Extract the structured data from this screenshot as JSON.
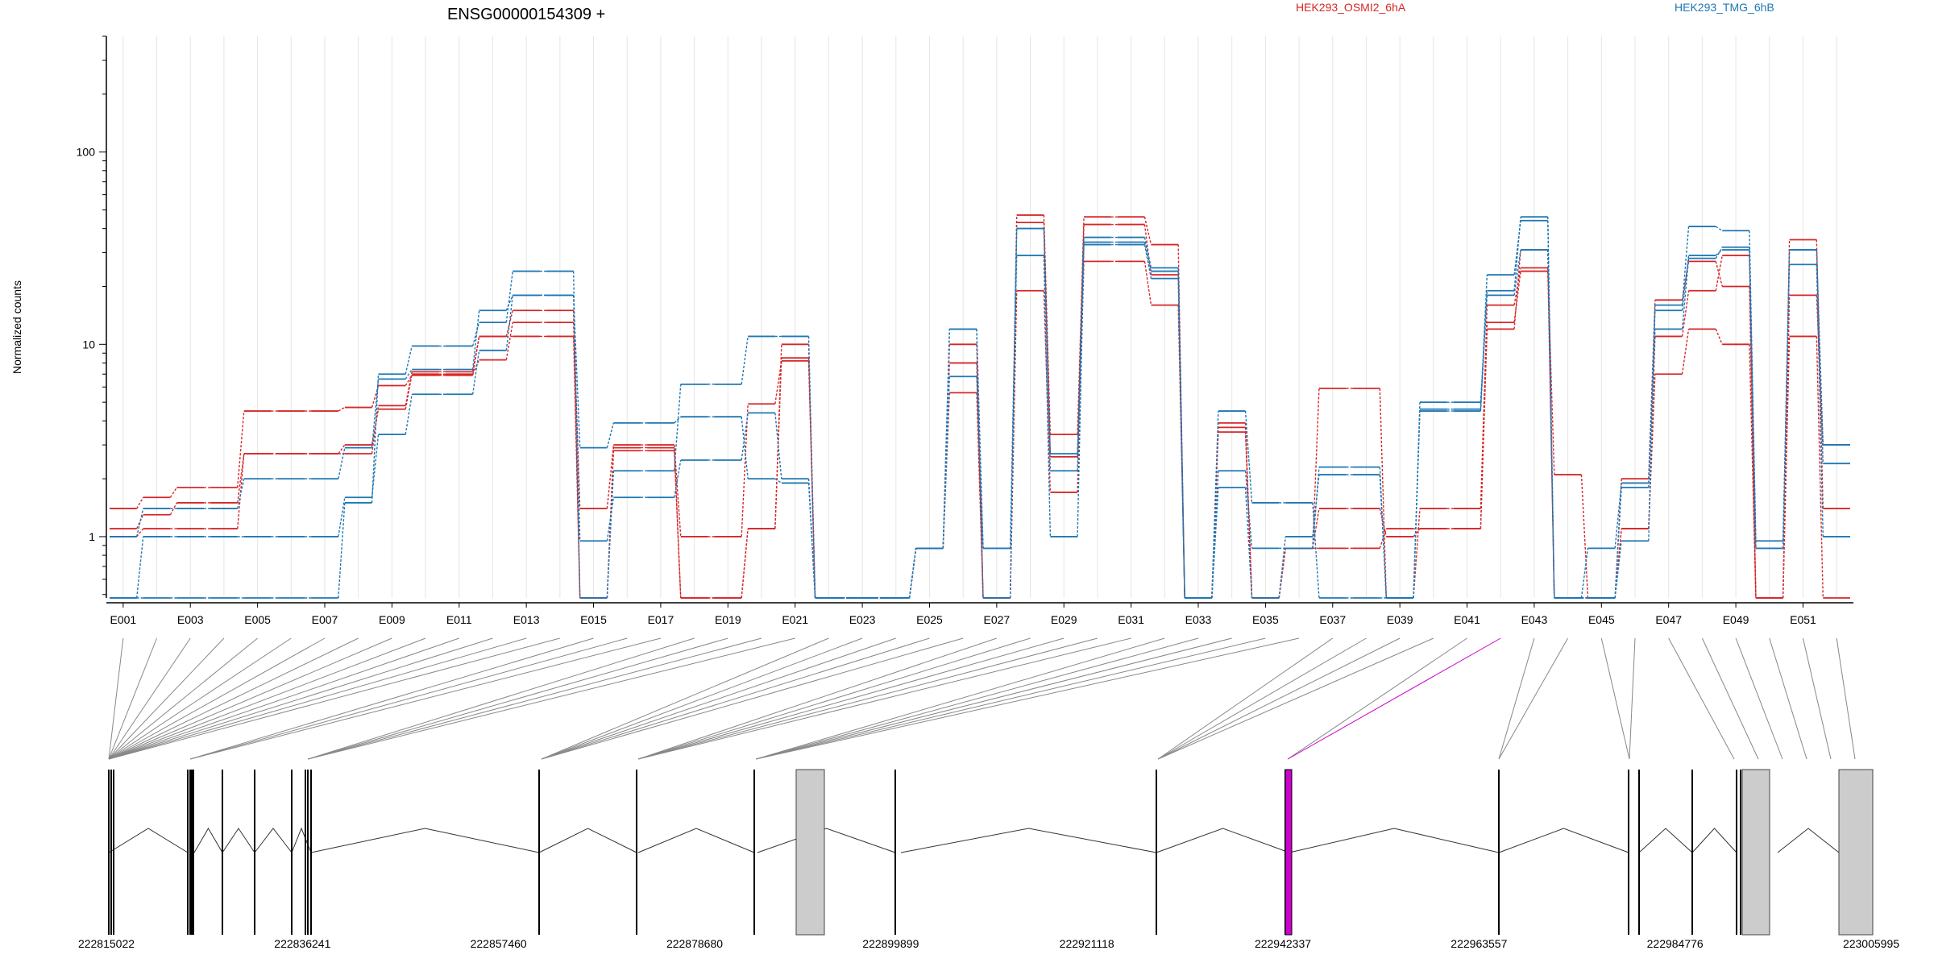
{
  "chart_data": {
    "type": "line",
    "title": "ENSG00000154309 +",
    "ylabel": "Normalized counts",
    "xlabel": "",
    "y_scale": "log",
    "ylim": [
      0.48,
      400
    ],
    "y_ticks": [
      {
        "value": 1,
        "label": "1"
      },
      {
        "value": 10,
        "label": "10"
      },
      {
        "value": 100,
        "label": "100"
      }
    ],
    "grid": "vertical",
    "legend": [
      {
        "name": "HEK293_OSMI2_6hA",
        "color": "#d62728"
      },
      {
        "name": "HEK293_TMG_6hB",
        "color": "#1f77b4"
      }
    ],
    "highlight_color": "#cc00cc",
    "exon_labels": [
      "E001",
      "E003",
      "E005",
      "E007",
      "E009",
      "E011",
      "E013",
      "E015",
      "E017",
      "E019",
      "E021",
      "E023",
      "E025",
      "E027",
      "E029",
      "E031",
      "E033",
      "E035",
      "E037",
      "E039",
      "E041",
      "E043",
      "E045",
      "E047",
      "E049",
      "E051"
    ],
    "n_exons": 52,
    "highlighted_exon": 41,
    "series": [
      {
        "name": "HEK293_OSMI2_6hA",
        "color": "#d62728",
        "values": [
          1.4,
          1.6,
          1.8,
          1.8,
          4.5,
          4.5,
          4.5,
          4.7,
          6.1,
          6.9,
          6.9,
          11,
          11,
          11,
          0.48,
          2.9,
          2.9,
          0.48,
          0.48,
          1.1,
          10,
          0.48,
          0.48,
          0.48,
          0.87,
          10,
          0.48,
          47,
          3.4,
          46,
          46,
          33,
          0.48,
          3.7,
          0.48,
          0.87,
          5.9,
          5.9,
          0.48,
          1.4,
          1.4,
          16,
          25,
          0.48,
          0.48,
          2.0,
          17,
          27,
          20,
          0.48,
          35,
          1.4
        ]
      },
      {
        "name": "HEK293_OSMI2_6hA",
        "color": "#d62728",
        "values": [
          1.1,
          1.3,
          1.5,
          1.5,
          2.7,
          2.7,
          2.7,
          3.0,
          4.6,
          7.0,
          7.0,
          8.3,
          13,
          13,
          1.4,
          3.0,
          3.0,
          1.0,
          1.0,
          4.9,
          8.2,
          0.48,
          0.48,
          0.48,
          0.87,
          8.0,
          0.48,
          43,
          2.6,
          42,
          42,
          23,
          0.48,
          3.5,
          0.48,
          0.87,
          1.4,
          1.4,
          1.0,
          1.1,
          1.1,
          13,
          24,
          2.1,
          0.48,
          1.1,
          7.0,
          12,
          10,
          0.48,
          11,
          0.48
        ]
      },
      {
        "name": "HEK293_OSMI2_6hA",
        "color": "#d62728",
        "values": [
          1.0,
          1.1,
          1.1,
          1.1,
          2.7,
          2.7,
          2.7,
          2.7,
          4.8,
          7.2,
          7.2,
          11,
          15,
          15,
          0.48,
          2.8,
          2.8,
          0.48,
          0.48,
          1.1,
          8.5,
          0.48,
          0.48,
          0.48,
          0.87,
          5.6,
          0.48,
          19,
          1.7,
          27,
          27,
          16,
          0.48,
          3.9,
          0.48,
          0.87,
          0.87,
          0.87,
          1.1,
          1.1,
          1.1,
          12,
          31,
          0.48,
          0.48,
          1.1,
          11,
          19,
          29,
          0.48,
          18,
          3.0
        ]
      },
      {
        "name": "HEK293_TMG_6hB",
        "color": "#1f77b4",
        "values": [
          0.48,
          1.0,
          1.0,
          1.0,
          1.0,
          1.0,
          1.0,
          1.6,
          3.4,
          5.5,
          5.5,
          9.3,
          18,
          18,
          0.95,
          1.6,
          1.6,
          2.5,
          2.5,
          4.4,
          2.0,
          0.48,
          0.48,
          0.48,
          0.87,
          6.8,
          0.87,
          29,
          1.0,
          33,
          33,
          22,
          0.48,
          1.8,
          0.48,
          1.0,
          2.1,
          2.1,
          0.48,
          4.5,
          4.5,
          19,
          46,
          0.48,
          0.48,
          0.95,
          16,
          41,
          39,
          0.95,
          26,
          1.0
        ]
      },
      {
        "name": "HEK293_TMG_6hB",
        "color": "#1f77b4",
        "values": [
          0.48,
          0.48,
          0.48,
          0.48,
          0.48,
          0.48,
          0.48,
          1.5,
          7.0,
          9.8,
          9.8,
          13,
          24,
          24,
          0.48,
          2.2,
          2.2,
          6.2,
          6.2,
          11,
          11,
          0.48,
          0.48,
          0.48,
          0.87,
          12,
          0.48,
          40,
          2.7,
          34,
          34,
          24,
          0.48,
          4.5,
          1.5,
          1.5,
          0.48,
          0.48,
          0.48,
          4.6,
          4.6,
          23,
          44,
          0.48,
          0.48,
          1.8,
          12,
          28,
          32,
          0.87,
          31,
          3.0
        ]
      },
      {
        "name": "HEK293_TMG_6hB",
        "color": "#1f77b4",
        "values": [
          1.0,
          1.4,
          1.4,
          1.4,
          2.0,
          2.0,
          2.0,
          2.9,
          6.6,
          7.4,
          7.4,
          15,
          18,
          18,
          2.9,
          3.9,
          3.9,
          4.2,
          4.2,
          2.0,
          1.9,
          0.48,
          0.48,
          0.48,
          0.87,
          12,
          0.87,
          40,
          2.2,
          36,
          36,
          25,
          0.48,
          2.2,
          0.87,
          0.87,
          2.3,
          2.3,
          0.48,
          5.0,
          5.0,
          18,
          31,
          0.48,
          0.87,
          1.9,
          15,
          29,
          31,
          0.87,
          31,
          2.4
        ]
      }
    ],
    "coordinate_labels": [
      "222815022",
      "222836241",
      "222857460",
      "222878680",
      "222899899",
      "222921118",
      "222942337",
      "222963557",
      "222984776",
      "223005995"
    ],
    "coordinate_range": [
      222815022,
      223005995
    ]
  }
}
